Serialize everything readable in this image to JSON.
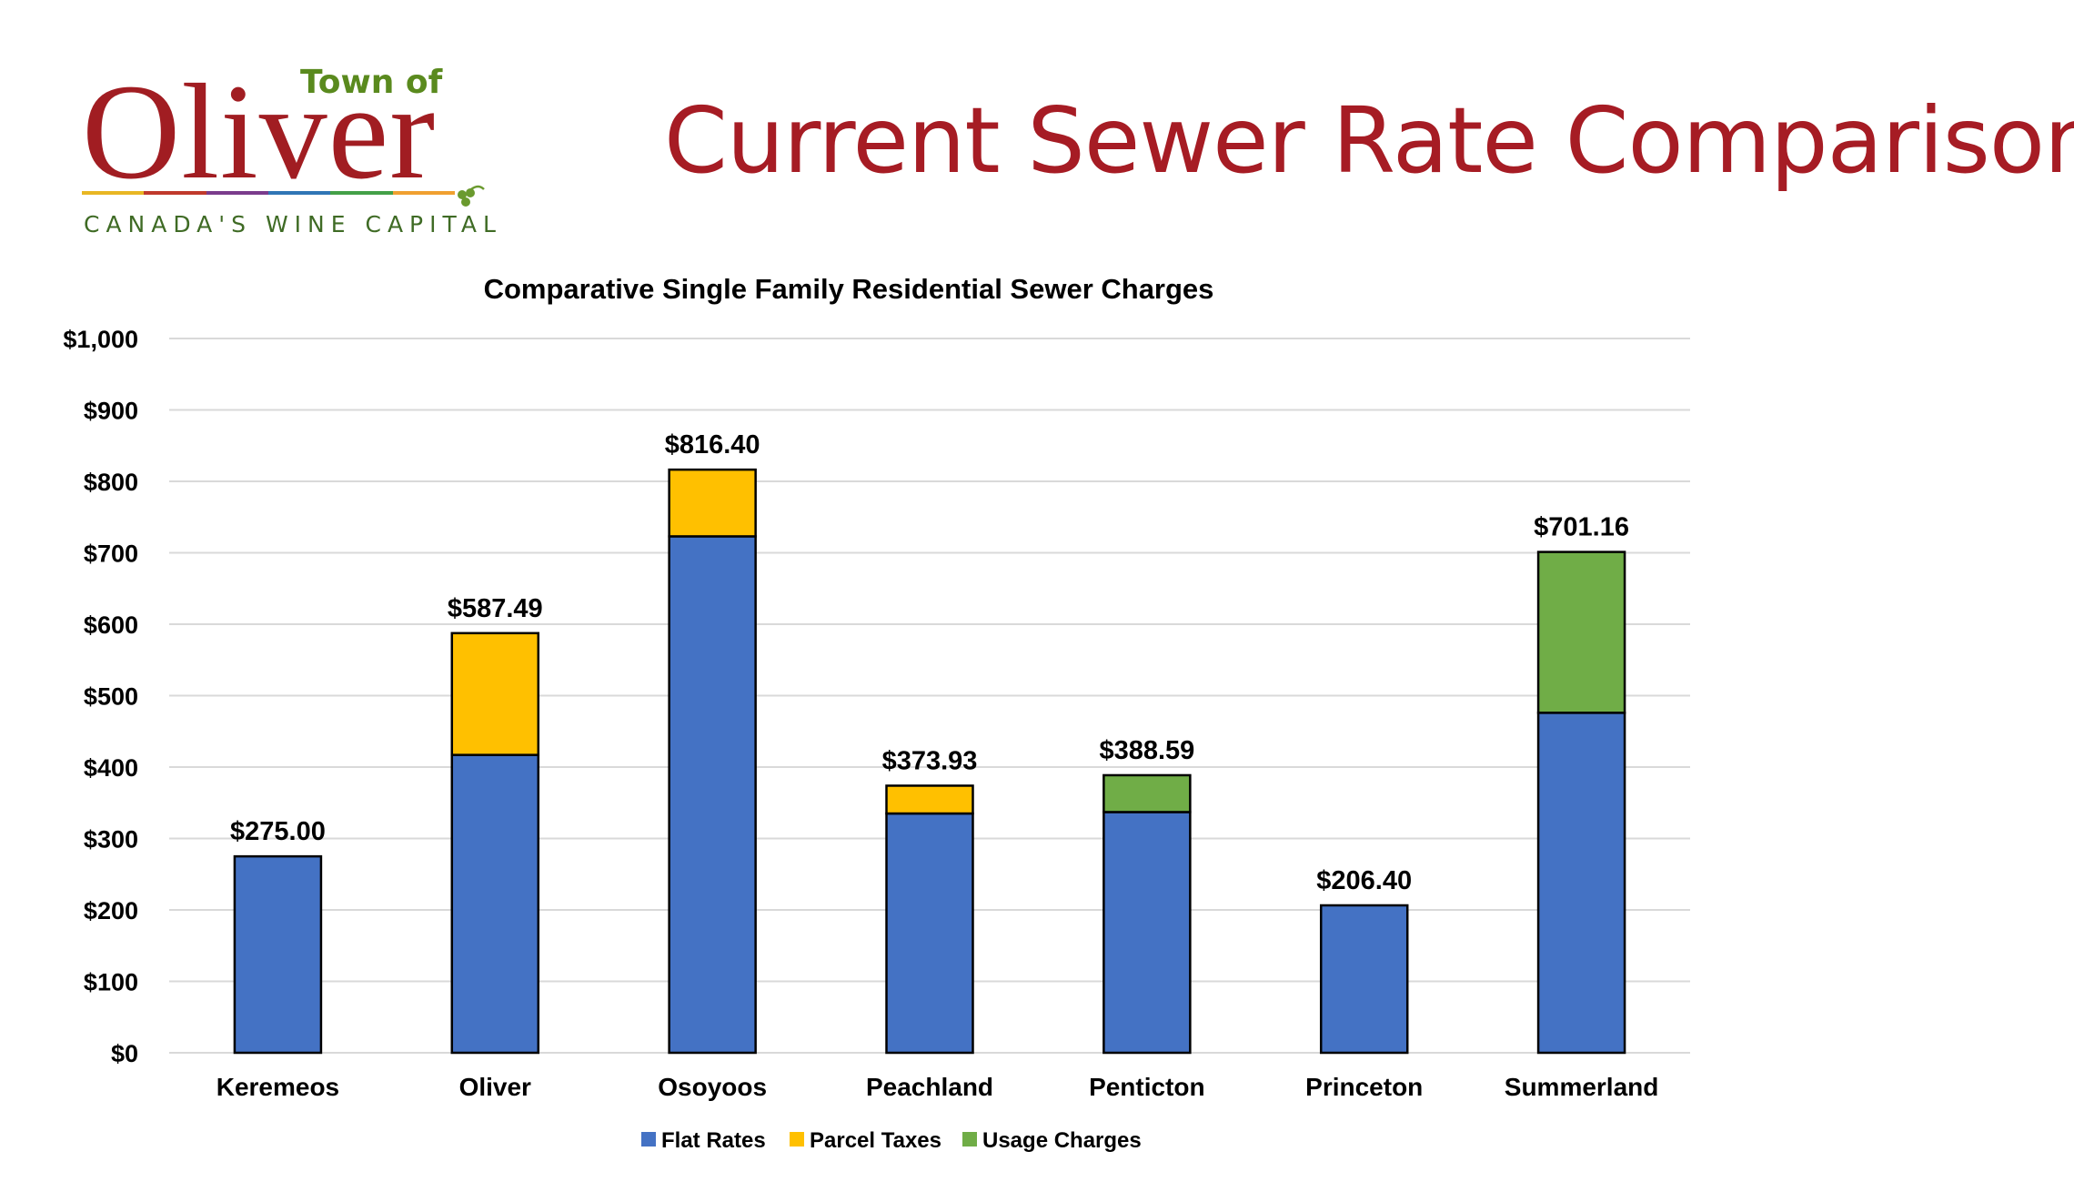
{
  "header": {
    "logo": {
      "town_of": "Town of",
      "name": "Oliver",
      "tagline": "CANADA'S WINE CAPITAL"
    },
    "title": "Current Sewer Rate Comparisons"
  },
  "colors": {
    "title": "#a61c24",
    "flat": "#4472c4",
    "parcel": "#ffc000",
    "usage": "#70ad47",
    "stripe": [
      "#e8b623",
      "#c0392b",
      "#7a3b8c",
      "#2f75b5",
      "#43a047",
      "#f0a030"
    ]
  },
  "chart_data": {
    "type": "bar",
    "stacked": true,
    "title": "Comparative Single Family Residential Sewer Charges",
    "categories": [
      "Keremeos",
      "Oliver",
      "Osoyoos",
      "Peachland",
      "Penticton",
      "Princeton",
      "Summerland"
    ],
    "series": [
      {
        "name": "Flat Rates",
        "color": "#4472c4",
        "values": [
          275.0,
          417.0,
          723.0,
          335.0,
          337.0,
          206.4,
          476.0
        ]
      },
      {
        "name": "Parcel Taxes",
        "color": "#ffc000",
        "values": [
          0,
          170.49,
          93.4,
          38.93,
          0,
          0,
          0
        ]
      },
      {
        "name": "Usage Charges",
        "color": "#70ad47",
        "values": [
          0,
          0,
          0,
          0,
          51.59,
          0,
          225.16
        ]
      }
    ],
    "totals": [
      "$275.00",
      "$587.49",
      "$816.40",
      "$373.93",
      "$388.59",
      "$206.40",
      "$701.16"
    ],
    "yticks": [
      "$0",
      "$100",
      "$200",
      "$300",
      "$400",
      "$500",
      "$600",
      "$700",
      "$800",
      "$900",
      "$1,000"
    ],
    "ylim": [
      0,
      1000
    ],
    "grid": true,
    "legend_position": "bottom"
  }
}
